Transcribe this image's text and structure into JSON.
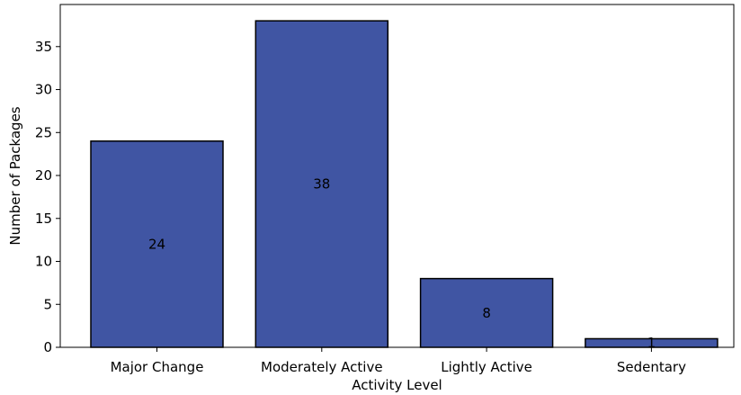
{
  "chart_data": {
    "type": "bar",
    "categories": [
      "Major Change",
      "Moderately Active",
      "Lightly Active",
      "Sedentary"
    ],
    "values": [
      24,
      38,
      8,
      1
    ],
    "title": "",
    "xlabel": "Activity Level",
    "ylabel": "Number of Packages",
    "ylim": [
      0,
      39.9
    ],
    "yticks": [
      0,
      5,
      10,
      15,
      20,
      25,
      30,
      35
    ],
    "bar_color": "#4055a3",
    "bar_edge_color": "#000000",
    "data_labels": true,
    "grid": false,
    "legend": "none"
  }
}
